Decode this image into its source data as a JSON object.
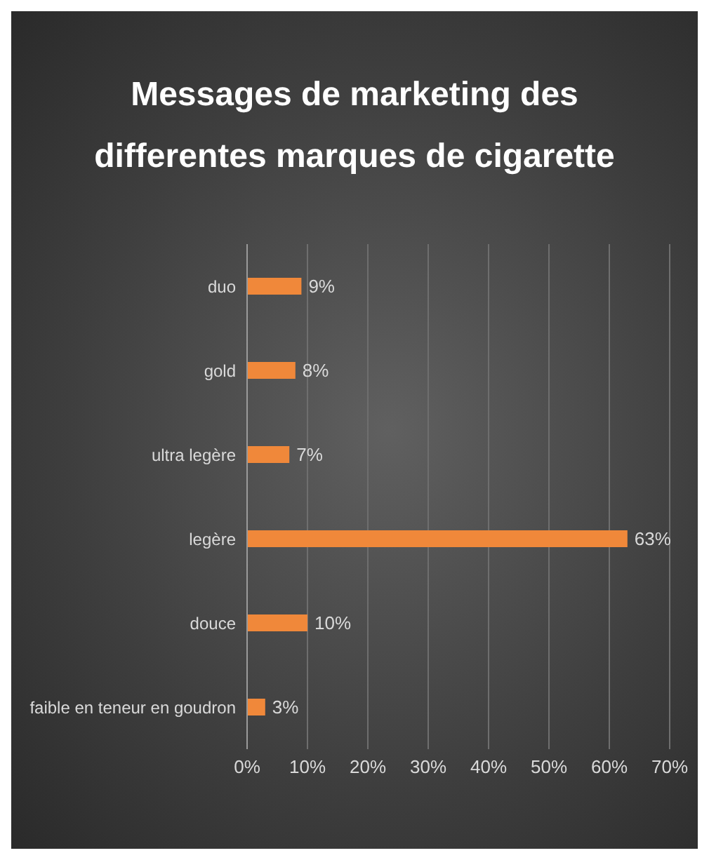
{
  "chart_data": {
    "type": "bar",
    "orientation": "horizontal",
    "title": "Messages de marketing des differentes marques de cigarette",
    "categories": [
      "duo",
      "gold",
      "ultra legère",
      "legère",
      "douce",
      "faible en teneur en goudron"
    ],
    "values": [
      9,
      8,
      7,
      63,
      10,
      3
    ],
    "value_labels": [
      "9%",
      "8%",
      "7%",
      "63%",
      "10%",
      "3%"
    ],
    "color": "#f0883a",
    "xlim": [
      0,
      70
    ],
    "xticks": [
      {
        "value": 0,
        "label": "0%"
      },
      {
        "value": 10,
        "label": "10%"
      },
      {
        "value": 20,
        "label": "20%"
      },
      {
        "value": 30,
        "label": "30%"
      },
      {
        "value": 40,
        "label": "40%"
      },
      {
        "value": 50,
        "label": "50%"
      },
      {
        "value": 60,
        "label": "60%"
      },
      {
        "value": 70,
        "label": "70%"
      }
    ],
    "grid": "x",
    "legend": false
  }
}
